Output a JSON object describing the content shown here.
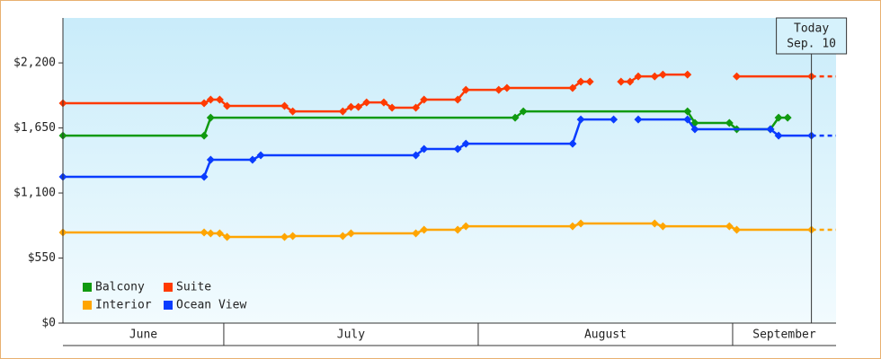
{
  "chart_data": {
    "type": "line",
    "xlim": [
      10.4,
      104.6
    ],
    "ylim": [
      0,
      2580
    ],
    "yticks": [
      {
        "value": 0,
        "label": "$0"
      },
      {
        "value": 550,
        "label": "$550"
      },
      {
        "value": 1100,
        "label": "$1,100"
      },
      {
        "value": 1650,
        "label": "$1,650"
      },
      {
        "value": 2200,
        "label": "$2,200"
      }
    ],
    "xticks": [
      30,
      61,
      92
    ],
    "month_labels": [
      "June",
      "July",
      "August",
      "September"
    ],
    "today": {
      "x": 101.6,
      "label": [
        "Today",
        "Sep. 10"
      ]
    },
    "dashed_after_today": true,
    "legend": "lower-left",
    "series": [
      {
        "name": "Balcony",
        "color": "#109a10",
        "x": [
          10.4,
          27.6,
          28.4,
          65.5,
          66.5,
          86.5,
          87.4,
          91.6,
          92.5,
          96.6,
          97.6,
          98.7
        ],
        "values": [
          1585,
          1585,
          1737,
          1737,
          1790,
          1790,
          1692,
          1692,
          1639,
          1639,
          1737,
          1737
        ]
      },
      {
        "name": "Suite",
        "color": "#ff3a00",
        "x": [
          10.4,
          27.6,
          28.4,
          29.5,
          30.4,
          37.4,
          38.4,
          44.5,
          45.5,
          46.4,
          47.4,
          49.5,
          50.5,
          53.4,
          54.4,
          58.5,
          59.5,
          63.5,
          64.5,
          72.5,
          73.5,
          74.6,
          null,
          78.4,
          79.5,
          80.5,
          82.5,
          83.5,
          86.5,
          null,
          92.5,
          101.6
        ],
        "values": [
          1859,
          1859,
          1889,
          1889,
          1836,
          1836,
          1790,
          1790,
          1828,
          1828,
          1866,
          1866,
          1821,
          1821,
          1889,
          1889,
          1972,
          1972,
          1988,
          1988,
          2041,
          2041,
          null,
          2041,
          2041,
          2086,
          2086,
          2101,
          2101,
          null,
          2086,
          2086
        ]
      },
      {
        "name": "Interior",
        "color": "#ffa500",
        "x": [
          10.4,
          27.6,
          28.4,
          29.5,
          30.4,
          37.4,
          38.4,
          44.5,
          45.5,
          53.4,
          54.4,
          58.5,
          59.5,
          72.5,
          73.5,
          82.5,
          83.5,
          91.6,
          92.5,
          101.6
        ],
        "values": [
          766,
          766,
          759,
          759,
          728,
          728,
          736,
          736,
          759,
          759,
          789,
          789,
          819,
          819,
          842,
          842,
          819,
          819,
          789,
          789
        ]
      },
      {
        "name": "Ocean View",
        "color": "#0a3cff",
        "x": [
          10.4,
          27.6,
          28.4,
          33.5,
          34.5,
          53.4,
          54.4,
          58.5,
          59.5,
          72.5,
          73.5,
          77.5,
          null,
          80.5,
          86.5,
          87.4,
          96.6,
          97.6,
          101.6
        ],
        "values": [
          1237,
          1237,
          1381,
          1381,
          1419,
          1419,
          1472,
          1472,
          1517,
          1517,
          1722,
          1722,
          null,
          1722,
          1722,
          1639,
          1639,
          1585,
          1585
        ]
      }
    ]
  }
}
